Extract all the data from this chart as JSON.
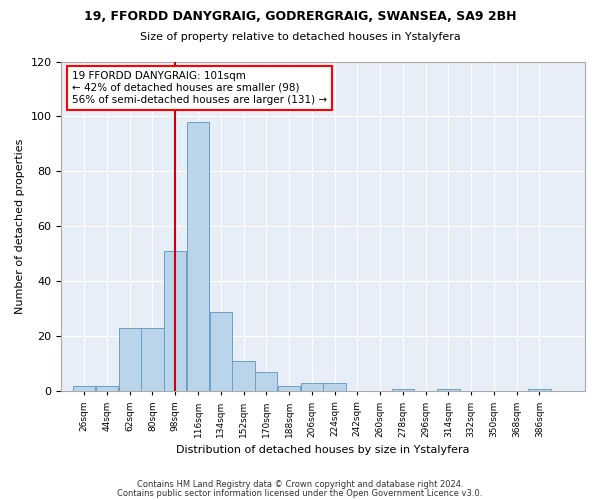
{
  "title": "19, FFORDD DANYGRAIG, GODRERGRAIG, SWANSEA, SA9 2BH",
  "subtitle": "Size of property relative to detached houses in Ystalyfera",
  "xlabel": "Distribution of detached houses by size in Ystalyfera",
  "ylabel": "Number of detached properties",
  "bar_color": "#bad4ea",
  "bar_edge_color": "#6a9fc8",
  "highlight_color": "#cc0000",
  "background_color": "#ffffff",
  "plot_bg_color": "#e8eef8",
  "grid_color": "#ffffff",
  "bin_edges": [
    26,
    44,
    62,
    80,
    98,
    116,
    134,
    152,
    170,
    188,
    206,
    224,
    242,
    260,
    278,
    296,
    314,
    332,
    350,
    368,
    386,
    404
  ],
  "values": [
    2,
    2,
    23,
    23,
    51,
    98,
    29,
    11,
    7,
    2,
    3,
    3,
    0,
    0,
    1,
    0,
    1,
    0,
    0,
    0,
    1
  ],
  "bin_labels": [
    "26sqm",
    "44sqm",
    "62sqm",
    "80sqm",
    "98sqm",
    "116sqm",
    "134sqm",
    "152sqm",
    "170sqm",
    "188sqm",
    "206sqm",
    "224sqm",
    "242sqm",
    "260sqm",
    "278sqm",
    "296sqm",
    "314sqm",
    "332sqm",
    "350sqm",
    "368sqm",
    "386sqm"
  ],
  "annotation_line1": "19 FFORDD DANYGRAIG: 101sqm",
  "annotation_line2": "← 42% of detached houses are smaller (98)",
  "annotation_line3": "56% of semi-detached houses are larger (131) →",
  "vline_x": 107,
  "ylim": [
    0,
    120
  ],
  "yticks": [
    0,
    20,
    40,
    60,
    80,
    100,
    120
  ],
  "footer_line1": "Contains HM Land Registry data © Crown copyright and database right 2024.",
  "footer_line2": "Contains public sector information licensed under the Open Government Licence v3.0."
}
